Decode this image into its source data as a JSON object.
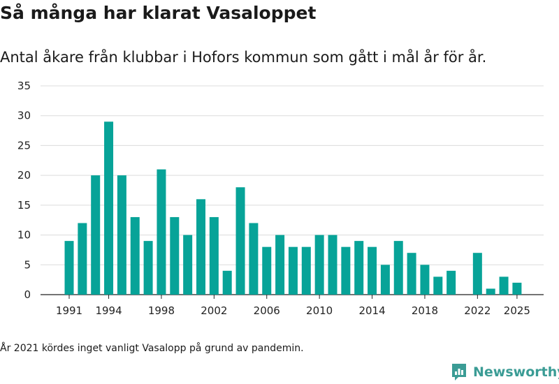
{
  "chart_data": {
    "type": "bar",
    "title": "Så många har klarat Vasaloppet",
    "subtitle": "Antal åkare från klubbar i Hofors kommun som gått i mål år för år.",
    "xlabel": "",
    "ylabel": "",
    "ylim": [
      0,
      35
    ],
    "yticks": [
      0,
      5,
      10,
      15,
      20,
      25,
      30,
      35
    ],
    "xticks": [
      1991,
      1994,
      1998,
      2002,
      2006,
      2010,
      2014,
      2018,
      2022,
      2025
    ],
    "x": [
      1991,
      1992,
      1993,
      1994,
      1995,
      1996,
      1997,
      1998,
      1999,
      2000,
      2001,
      2002,
      2003,
      2004,
      2005,
      2006,
      2007,
      2008,
      2009,
      2010,
      2011,
      2012,
      2013,
      2014,
      2015,
      2016,
      2017,
      2018,
      2019,
      2020,
      2022,
      2023,
      2024,
      2025
    ],
    "values": [
      9,
      12,
      20,
      29,
      20,
      13,
      9,
      21,
      13,
      10,
      16,
      13,
      4,
      18,
      12,
      8,
      10,
      8,
      8,
      10,
      10,
      8,
      9,
      8,
      5,
      9,
      7,
      5,
      3,
      4,
      7,
      1,
      3,
      2
    ],
    "bar_color": "#07a398",
    "grid": true
  },
  "footnote": "År 2021 kördes inget vanligt Vasalopp på grund av pandemin.",
  "brand": {
    "name": "Newsworthy",
    "color": "#3b9c95"
  }
}
